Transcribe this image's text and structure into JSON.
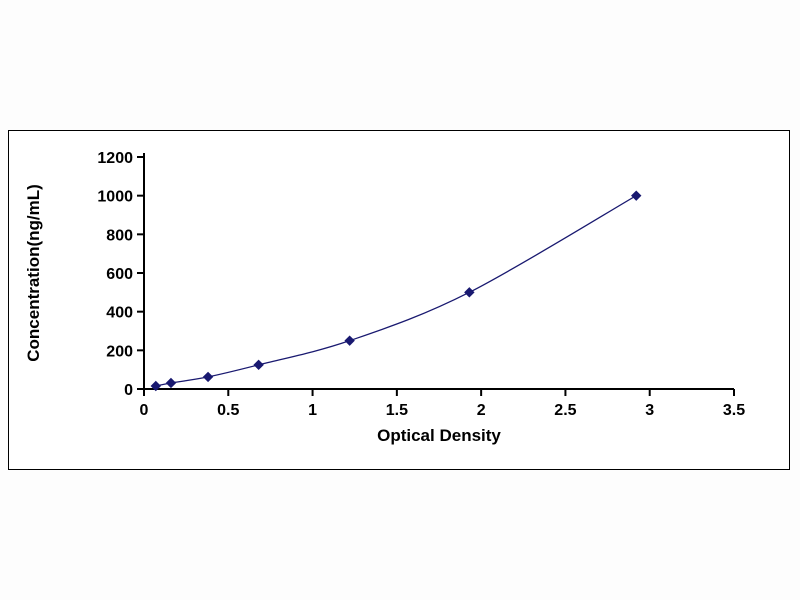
{
  "chart_data": {
    "type": "line",
    "title": "",
    "xlabel": "Optical Density",
    "ylabel": "Concentration(ng/mL)",
    "x": [
      0.07,
      0.16,
      0.38,
      0.68,
      1.22,
      1.93,
      2.92
    ],
    "y": [
      15.6,
      31.2,
      62.5,
      125,
      250,
      500,
      1000
    ],
    "xlim": [
      0,
      3.5
    ],
    "ylim": [
      0,
      1200
    ],
    "xticks": [
      0,
      0.5,
      1,
      1.5,
      2,
      2.5,
      3,
      3.5
    ],
    "yticks": [
      0,
      200,
      400,
      600,
      800,
      1000,
      1200
    ],
    "line_color": "#191970",
    "marker": "diamond",
    "grid": false,
    "legend": "none"
  }
}
